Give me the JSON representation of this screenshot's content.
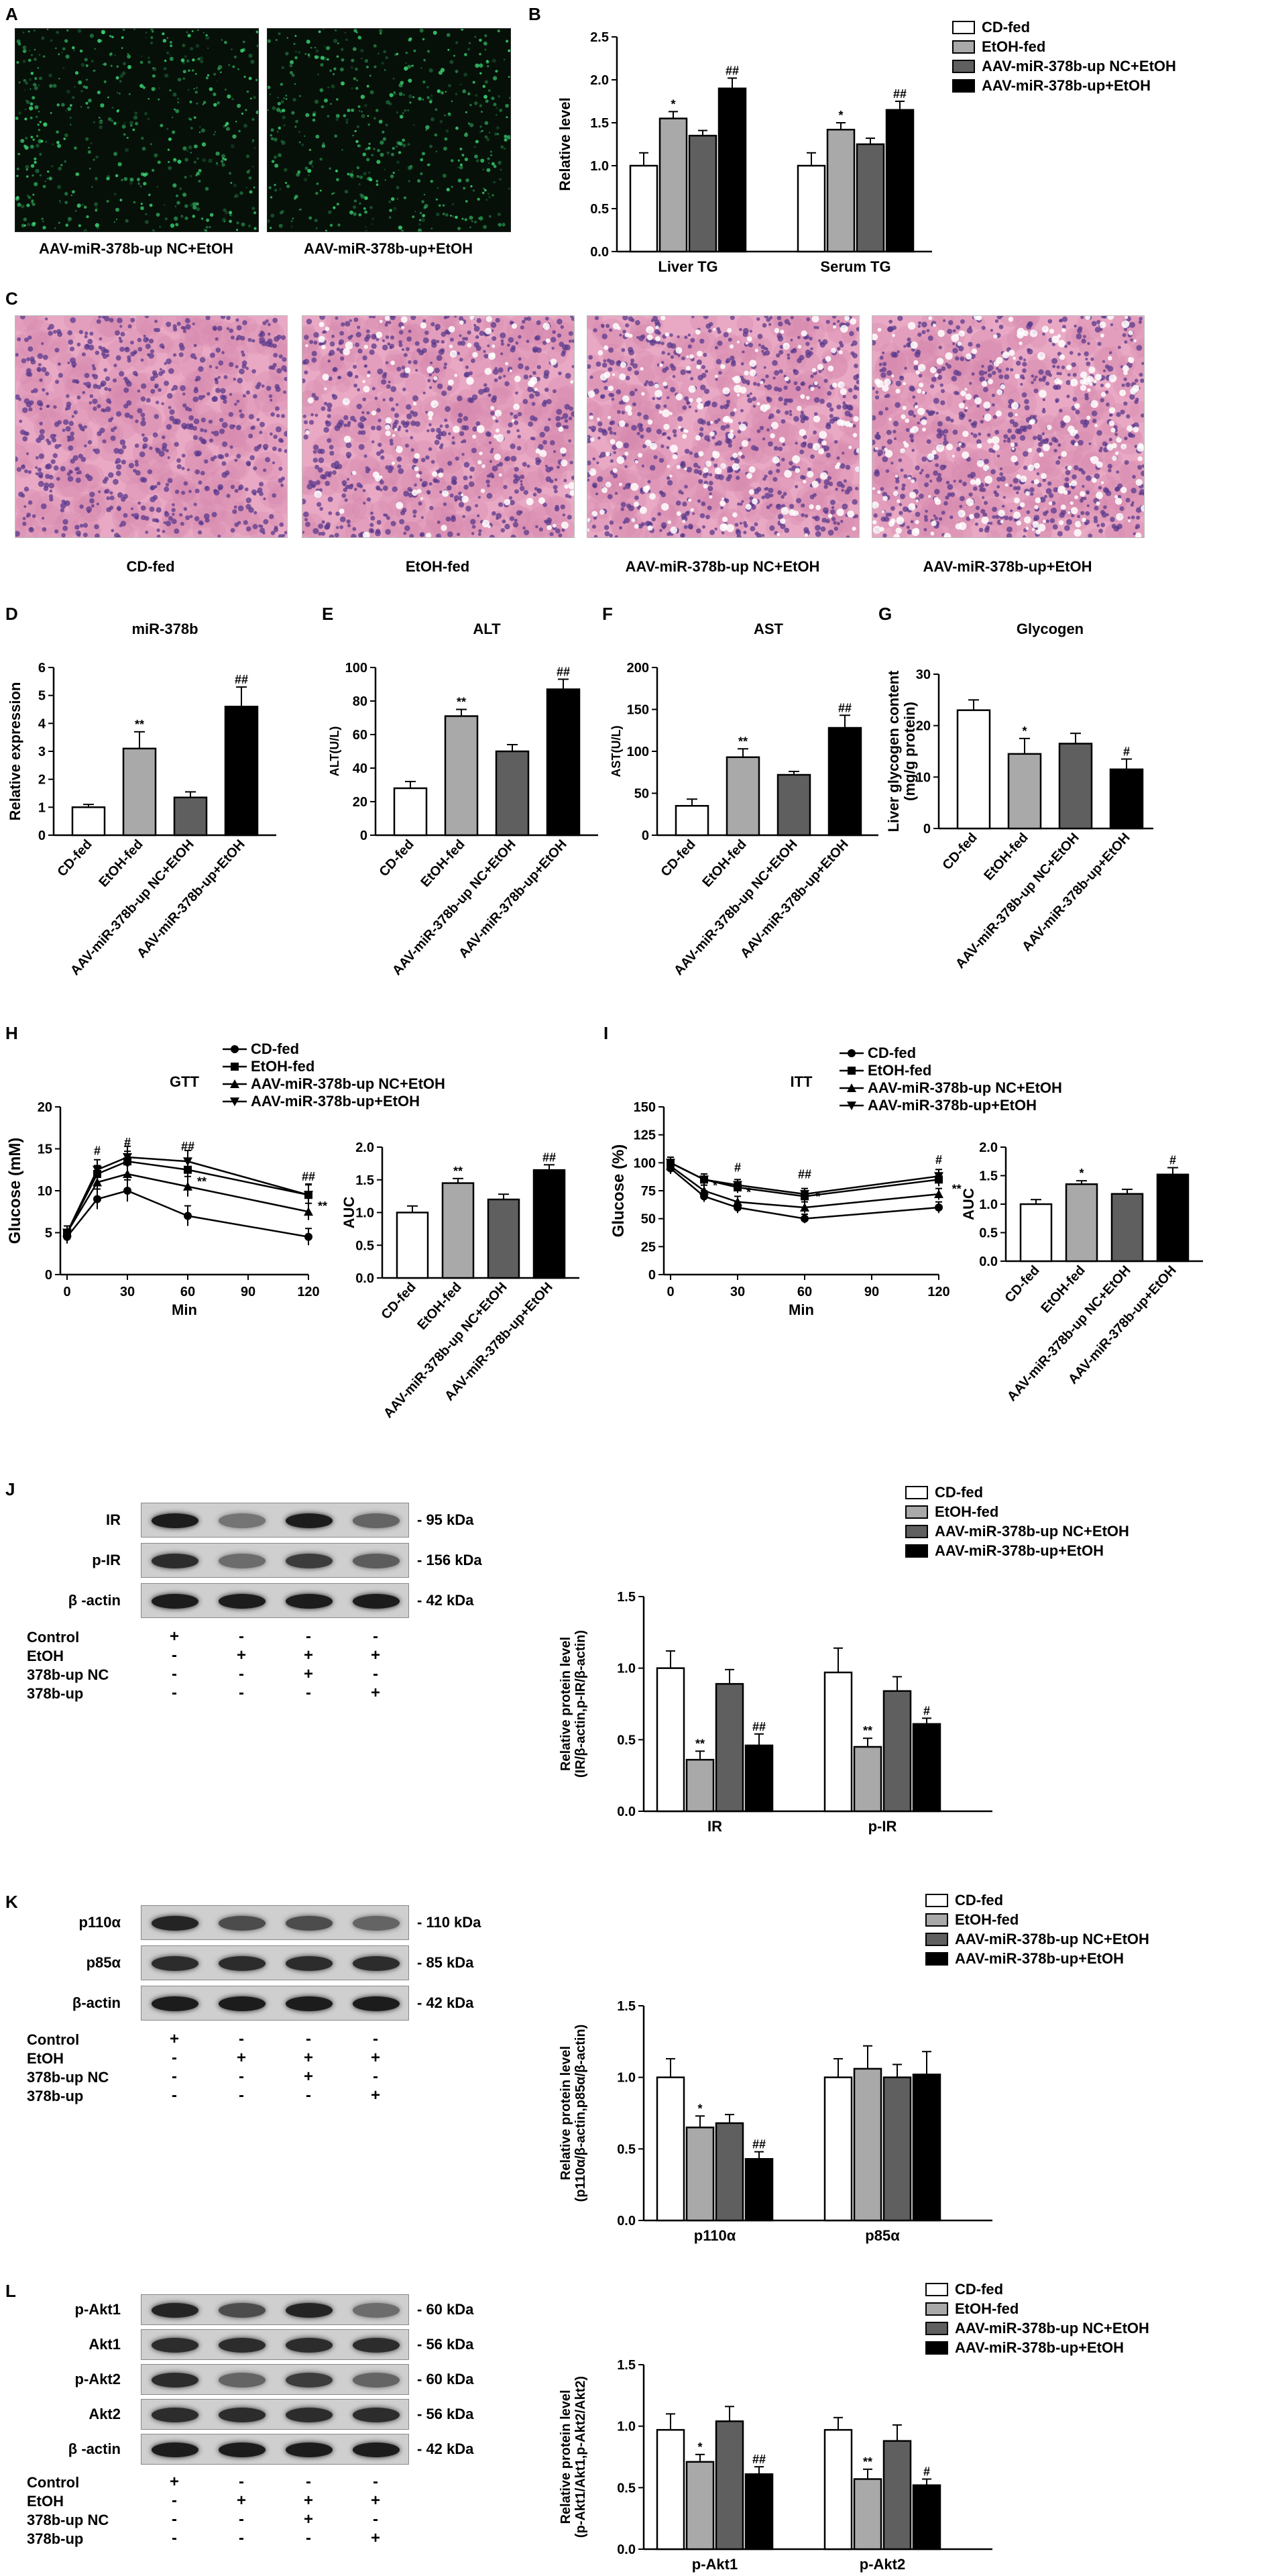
{
  "panel_letters": [
    "A",
    "B",
    "C",
    "D",
    "E",
    "F",
    "G",
    "H",
    "I",
    "J",
    "K",
    "L"
  ],
  "colors": {
    "cd": "#ffffff",
    "etoh": "#a9a9a9",
    "nc": "#5f5f5f",
    "up": "#000000",
    "fluor": "#3fe07a",
    "he_bg": "#e9a9c4",
    "he_dot": "#5a3a8c"
  },
  "panelA": {
    "captions": [
      "AAV-miR-378b-up NC+EtOH",
      "AAV-miR-378b-up+EtOH"
    ]
  },
  "panelC": {
    "captions": [
      "CD-fed",
      "EtOH-fed",
      "AAV-miR-378b-up NC+EtOH",
      "AAV-miR-378b-up+EtOH"
    ]
  },
  "legend": [
    "CD-fed",
    "EtOH-fed",
    "AAV-miR-378b-up NC+EtOH",
    "AAV-miR-378b-up+EtOH"
  ],
  "group_labels": [
    "CD-fed",
    "EtOH-fed",
    "AAV-miR-378b-up NC+EtOH",
    "AAV-miR-378b-up+EtOH"
  ],
  "blots": {
    "J": {
      "rows": [
        {
          "label": "IR",
          "kda": "95 kDa"
        },
        {
          "label": "p-IR",
          "kda": "156 kDa"
        },
        {
          "label": "β -actin",
          "kda": "42 kDa"
        }
      ]
    },
    "K": {
      "rows": [
        {
          "label": "p110α",
          "kda": "110 kDa"
        },
        {
          "label": "p85α",
          "kda": "85 kDa"
        },
        {
          "label": "β-actin",
          "kda": "42 kDa"
        }
      ]
    },
    "L": {
      "rows": [
        {
          "label": "p-Akt1",
          "kda": "60 kDa"
        },
        {
          "label": "Akt1",
          "kda": "56 kDa"
        },
        {
          "label": "p-Akt2",
          "kda": "60 kDa"
        },
        {
          "label": "Akt2",
          "kda": "56 kDa"
        },
        {
          "label": "β -actin",
          "kda": "42 kDa"
        }
      ]
    }
  },
  "conditions": {
    "rows": [
      {
        "label": "Control",
        "values": [
          "+",
          "-",
          "-",
          "-"
        ]
      },
      {
        "label": "EtOH",
        "values": [
          "-",
          "+",
          "+",
          "+"
        ]
      },
      {
        "label": "378b-up NC",
        "values": [
          "-",
          "-",
          "+",
          "-"
        ]
      },
      {
        "label": "378b-up",
        "values": [
          "-",
          "-",
          "-",
          "+"
        ]
      }
    ]
  },
  "chart_data": [
    {
      "id": "B",
      "type": "bar",
      "ylabel": "Relative  level",
      "categories": [
        "Liver TG",
        "Serum TG"
      ],
      "ylim": [
        0,
        2.5
      ],
      "yticks": [
        0,
        0.5,
        1.0,
        1.5,
        2.0,
        2.5
      ],
      "series": [
        {
          "name": "CD-fed",
          "values": [
            1.0,
            1.0
          ],
          "err": [
            0.15,
            0.15
          ],
          "marks": [
            "",
            ""
          ]
        },
        {
          "name": "EtOH-fed",
          "values": [
            1.55,
            1.42
          ],
          "err": [
            0.08,
            0.08
          ],
          "marks": [
            "*",
            "*"
          ]
        },
        {
          "name": "AAV-miR-378b-up NC+EtOH",
          "values": [
            1.35,
            1.25
          ],
          "err": [
            0.06,
            0.07
          ],
          "marks": [
            "",
            ""
          ]
        },
        {
          "name": "AAV-miR-378b-up+EtOH",
          "values": [
            1.9,
            1.65
          ],
          "err": [
            0.12,
            0.1
          ],
          "marks": [
            "##",
            "##"
          ]
        }
      ]
    },
    {
      "id": "D",
      "type": "bar",
      "title": "miR-378b",
      "ylabel": "Relative  expression",
      "ylim": [
        0,
        6
      ],
      "yticks": [
        0,
        1,
        2,
        3,
        4,
        5,
        6
      ],
      "values": [
        1.0,
        3.1,
        1.35,
        4.6
      ],
      "err": [
        0.1,
        0.6,
        0.2,
        0.7
      ],
      "marks": [
        "",
        "**",
        "",
        "##"
      ]
    },
    {
      "id": "E",
      "type": "bar",
      "title": "ALT",
      "ylabel": "ALT(U/L)",
      "ylim": [
        0,
        100
      ],
      "yticks": [
        0,
        20,
        40,
        60,
        80,
        100
      ],
      "values": [
        28,
        71,
        50,
        87
      ],
      "err": [
        4,
        4,
        4,
        6
      ],
      "marks": [
        "",
        "**",
        "",
        "##"
      ]
    },
    {
      "id": "F",
      "type": "bar",
      "title": "AST",
      "ylabel": "AST(U/L)",
      "ylim": [
        0,
        200
      ],
      "yticks": [
        0,
        50,
        100,
        150,
        200
      ],
      "values": [
        35,
        93,
        72,
        128
      ],
      "err": [
        8,
        10,
        4,
        15
      ],
      "marks": [
        "",
        "**",
        "",
        "##"
      ]
    },
    {
      "id": "G",
      "type": "bar",
      "title": "Glycogen",
      "ylabel": "Liver glycogen content (mg/g protein)",
      "ylim": [
        0,
        30
      ],
      "yticks": [
        0,
        10,
        20,
        30
      ],
      "values": [
        23,
        14.5,
        16.5,
        11.5
      ],
      "err": [
        2,
        3,
        2,
        2
      ],
      "marks": [
        "",
        "*",
        "",
        "#"
      ]
    },
    {
      "id": "H-line",
      "type": "line",
      "title": "GTT",
      "xlabel": "Min",
      "ylabel": "Glucose (mM)",
      "xlim": [
        0,
        120
      ],
      "ylim": [
        0,
        20
      ],
      "xticks": [
        0,
        30,
        60,
        90,
        120
      ],
      "yticks": [
        0,
        5,
        10,
        15,
        20
      ],
      "x": [
        0,
        15,
        30,
        60,
        120
      ],
      "series": [
        {
          "name": "CD-fed",
          "marker": "circle",
          "values": [
            4.5,
            9,
            10,
            7,
            4.5
          ],
          "err": [
            0.8,
            1.2,
            1.3,
            1.2,
            1.0
          ]
        },
        {
          "name": "EtOH-fed",
          "marker": "square",
          "values": [
            5,
            12,
            13.5,
            12.5,
            9.5
          ],
          "err": [
            0.8,
            1.0,
            1.2,
            1.2,
            1.2
          ]
        },
        {
          "name": "AAV-miR-378b-up NC+EtOH",
          "marker": "triangle-up",
          "values": [
            5,
            11,
            12,
            10.5,
            7.5
          ],
          "err": [
            0.8,
            1.0,
            1.2,
            1.2,
            1.0
          ]
        },
        {
          "name": "AAV-miR-378b-up+EtOH",
          "marker": "triangle-down",
          "values": [
            5,
            12.5,
            14,
            13.5,
            9.5
          ],
          "err": [
            0.8,
            1.2,
            1.3,
            1.3,
            1.3
          ]
        }
      ],
      "annotations": [
        {
          "x": 15,
          "y": 14.3,
          "text": "#"
        },
        {
          "x": 30,
          "y": 15.3,
          "text": "#"
        },
        {
          "x": 60,
          "y": 14.8,
          "text": "##"
        },
        {
          "x": 120,
          "y": 11.2,
          "text": "##"
        },
        {
          "x": 15,
          "y": 11.0,
          "text": "*"
        },
        {
          "x": 30,
          "y": 12.4,
          "text": "*"
        },
        {
          "x": 67,
          "y": 10.6,
          "text": "**"
        },
        {
          "x": 127,
          "y": 7.7,
          "text": "**"
        }
      ]
    },
    {
      "id": "H-auc",
      "type": "bar",
      "ylabel": "AUC",
      "ylim": [
        0,
        2.0
      ],
      "yticks": [
        0,
        0.5,
        1.0,
        1.5,
        2.0
      ],
      "values": [
        1.0,
        1.45,
        1.2,
        1.65
      ],
      "err": [
        0.1,
        0.07,
        0.08,
        0.08
      ],
      "marks": [
        "",
        "**",
        "",
        "##"
      ]
    },
    {
      "id": "I-line",
      "type": "line",
      "title": "ITT",
      "xlabel": "Min",
      "ylabel": "Glucose (%)",
      "xlim": [
        0,
        120
      ],
      "ylim": [
        0,
        150
      ],
      "xticks": [
        0,
        30,
        60,
        90,
        120
      ],
      "yticks": [
        0,
        25,
        50,
        75,
        100,
        125,
        150
      ],
      "x": [
        0,
        15,
        30,
        60,
        120
      ],
      "series": [
        {
          "name": "CD-fed",
          "marker": "circle",
          "values": [
            95,
            70,
            60,
            50,
            60
          ],
          "err": [
            5,
            5,
            5,
            4,
            5
          ]
        },
        {
          "name": "EtOH-fed",
          "marker": "square",
          "values": [
            100,
            85,
            78,
            70,
            85
          ],
          "err": [
            5,
            5,
            5,
            5,
            6
          ]
        },
        {
          "name": "AAV-miR-378b-up NC+EtOH",
          "marker": "triangle-up",
          "values": [
            97,
            75,
            65,
            60,
            72
          ],
          "err": [
            5,
            5,
            5,
            5,
            5
          ]
        },
        {
          "name": "AAV-miR-378b-up+EtOH",
          "marker": "triangle-down",
          "values": [
            100,
            85,
            80,
            72,
            88
          ],
          "err": [
            5,
            5,
            5,
            5,
            6
          ]
        }
      ],
      "annotations": [
        {
          "x": 30,
          "y": 92,
          "text": "#"
        },
        {
          "x": 60,
          "y": 86,
          "text": "##"
        },
        {
          "x": 120,
          "y": 99,
          "text": "#"
        },
        {
          "x": 20,
          "y": 76,
          "text": "*"
        },
        {
          "x": 35,
          "y": 70,
          "text": "*"
        },
        {
          "x": 66,
          "y": 66,
          "text": "*"
        },
        {
          "x": 128,
          "y": 73,
          "text": "**"
        }
      ]
    },
    {
      "id": "I-auc",
      "type": "bar",
      "ylabel": "AUC",
      "ylim": [
        0,
        2.0
      ],
      "yticks": [
        0,
        0.5,
        1.0,
        1.5,
        2.0
      ],
      "values": [
        1.0,
        1.35,
        1.18,
        1.52
      ],
      "err": [
        0.08,
        0.06,
        0.08,
        0.12
      ],
      "marks": [
        "",
        "*",
        "",
        "#"
      ]
    },
    {
      "id": "J",
      "type": "bar",
      "ylabel": "Relative  protein level (IR/β-actin,p-IR/β-actin)",
      "categories": [
        "IR",
        "p-IR"
      ],
      "ylim": [
        0,
        1.5
      ],
      "yticks": [
        0.0,
        0.5,
        1.0,
        1.5
      ],
      "series": [
        {
          "name": "CD-fed",
          "values": [
            1.0,
            0.97
          ],
          "err": [
            0.12,
            0.17
          ],
          "marks": [
            "",
            ""
          ]
        },
        {
          "name": "EtOH-fed",
          "values": [
            0.36,
            0.45
          ],
          "err": [
            0.06,
            0.06
          ],
          "marks": [
            "**",
            "**"
          ]
        },
        {
          "name": "AAV-miR-378b-up NC+EtOH",
          "values": [
            0.89,
            0.84
          ],
          "err": [
            0.1,
            0.1
          ],
          "marks": [
            "",
            ""
          ]
        },
        {
          "name": "AAV-miR-378b-up+EtOH",
          "values": [
            0.46,
            0.61
          ],
          "err": [
            0.08,
            0.04
          ],
          "marks": [
            "##",
            "#"
          ]
        }
      ]
    },
    {
      "id": "K",
      "type": "bar",
      "ylabel": "Relative  protein level (p110α/β-actin,p85α/β-actin)",
      "categories": [
        "p110α",
        "p85α"
      ],
      "ylim": [
        0,
        1.5
      ],
      "yticks": [
        0.0,
        0.5,
        1.0,
        1.5
      ],
      "series": [
        {
          "name": "CD-fed",
          "values": [
            1.0,
            1.0
          ],
          "err": [
            0.13,
            0.13
          ],
          "marks": [
            "",
            ""
          ]
        },
        {
          "name": "EtOH-fed",
          "values": [
            0.65,
            1.06
          ],
          "err": [
            0.08,
            0.16
          ],
          "marks": [
            "*",
            ""
          ]
        },
        {
          "name": "AAV-miR-378b-up NC+EtOH",
          "values": [
            0.68,
            1.0
          ],
          "err": [
            0.06,
            0.09
          ],
          "marks": [
            "",
            ""
          ]
        },
        {
          "name": "AAV-miR-378b-up+EtOH",
          "values": [
            0.43,
            1.02
          ],
          "err": [
            0.05,
            0.16
          ],
          "marks": [
            "##",
            ""
          ]
        }
      ]
    },
    {
      "id": "L",
      "type": "bar",
      "ylabel": "Relative  protein level (p-Akt1/Akt1,p-Akt2/Akt2)",
      "categories": [
        "p-Akt1",
        "p-Akt2"
      ],
      "ylim": [
        0,
        1.5
      ],
      "yticks": [
        0.0,
        0.5,
        1.0,
        1.5
      ],
      "series": [
        {
          "name": "CD-fed",
          "values": [
            0.97,
            0.97
          ],
          "err": [
            0.13,
            0.1
          ],
          "marks": [
            "",
            ""
          ]
        },
        {
          "name": "EtOH-fed",
          "values": [
            0.71,
            0.57
          ],
          "err": [
            0.06,
            0.08
          ],
          "marks": [
            "*",
            "**"
          ]
        },
        {
          "name": "AAV-miR-378b-up NC+EtOH",
          "values": [
            1.04,
            0.88
          ],
          "err": [
            0.12,
            0.13
          ],
          "marks": [
            "",
            ""
          ]
        },
        {
          "name": "AAV-miR-378b-up+EtOH",
          "values": [
            0.61,
            0.52
          ],
          "err": [
            0.06,
            0.05
          ],
          "marks": [
            "##",
            "#"
          ]
        }
      ]
    }
  ]
}
